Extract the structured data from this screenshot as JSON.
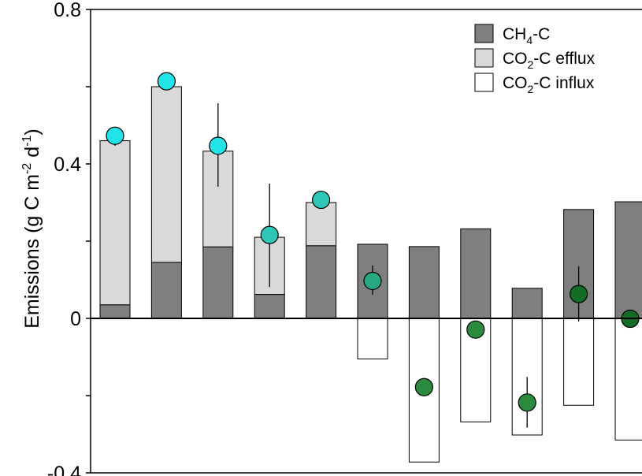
{
  "colors": {
    "ch4": "#7f7f7f",
    "co2_efflux": "#d9d9d9",
    "co2_influx": "#ffffff",
    "marker_cyan": "#21e3e8",
    "marker_teal": "#2fc6b5",
    "marker_seagreen": "#26a880",
    "marker_green": "#2b8a3e",
    "marker_darkgreen": "#136d26"
  },
  "chart_data": {
    "type": "bar",
    "ylabel": "Emissions (g C m-2 d-1)",
    "ylabel_parts": {
      "main": "Emissions (g C m",
      "sup1": "-2",
      "mid": " d",
      "sup2": "-1",
      "end": ")"
    },
    "ylim": [
      -0.4,
      0.8
    ],
    "yticks": [
      {
        "value": 0.8,
        "label": "0.8"
      },
      {
        "value": 0.4,
        "label": "0.4"
      },
      {
        "value": 0,
        "label": "0"
      },
      {
        "value": -0.4,
        "label": "-0.4"
      }
    ],
    "minor_yticks": [
      0.6,
      0.2,
      -0.2
    ],
    "legend": {
      "position": "top-right",
      "entries": [
        {
          "key": "ch4",
          "main": "CH",
          "sub": "4",
          "rest": "-C"
        },
        {
          "key": "co2_efflux",
          "main": "CO",
          "sub": "2",
          "rest": "-C efflux"
        },
        {
          "key": "co2_influx",
          "main": "CO",
          "sub": "2",
          "rest": "-C influx"
        }
      ]
    },
    "series": [
      {
        "name": "CH4-C",
        "key": "ch4",
        "values": [
          0.035,
          0.145,
          0.185,
          0.062,
          0.188,
          0.192,
          0.186,
          0.232,
          0.078,
          0.282,
          0.302
        ]
      },
      {
        "name": "CO2-C efflux",
        "key": "co2_efflux",
        "values": [
          0.425,
          0.455,
          0.248,
          0.148,
          0.112,
          0,
          0,
          0,
          0,
          0,
          0
        ]
      },
      {
        "name": "CO2-C influx",
        "key": "co2_influx",
        "values": [
          0,
          0,
          0,
          0,
          0,
          -0.105,
          -0.372,
          -0.268,
          -0.302,
          -0.225,
          -0.315
        ]
      }
    ],
    "net_points": [
      {
        "value": 0.473,
        "err_low": 0.447,
        "err_high": 0.487,
        "color": "marker_cyan"
      },
      {
        "value": 0.614,
        "err_low": null,
        "err_high": null,
        "color": "marker_cyan"
      },
      {
        "value": 0.447,
        "err_low": 0.341,
        "err_high": 0.557,
        "color": "marker_cyan"
      },
      {
        "value": 0.216,
        "err_low": 0.081,
        "err_high": 0.349,
        "color": "marker_teal"
      },
      {
        "value": 0.307,
        "err_low": null,
        "err_high": null,
        "color": "marker_teal"
      },
      {
        "value": 0.097,
        "err_low": 0.061,
        "err_high": 0.137,
        "color": "marker_seagreen"
      },
      {
        "value": -0.178,
        "err_low": null,
        "err_high": null,
        "color": "marker_green"
      },
      {
        "value": -0.029,
        "err_low": null,
        "err_high": null,
        "color": "marker_green"
      },
      {
        "value": -0.218,
        "err_low": -0.283,
        "err_high": -0.152,
        "color": "marker_green"
      },
      {
        "value": 0.063,
        "err_low": -0.008,
        "err_high": 0.135,
        "color": "marker_darkgreen"
      },
      {
        "value": -0.001,
        "err_low": null,
        "err_high": null,
        "color": "marker_darkgreen"
      }
    ]
  }
}
